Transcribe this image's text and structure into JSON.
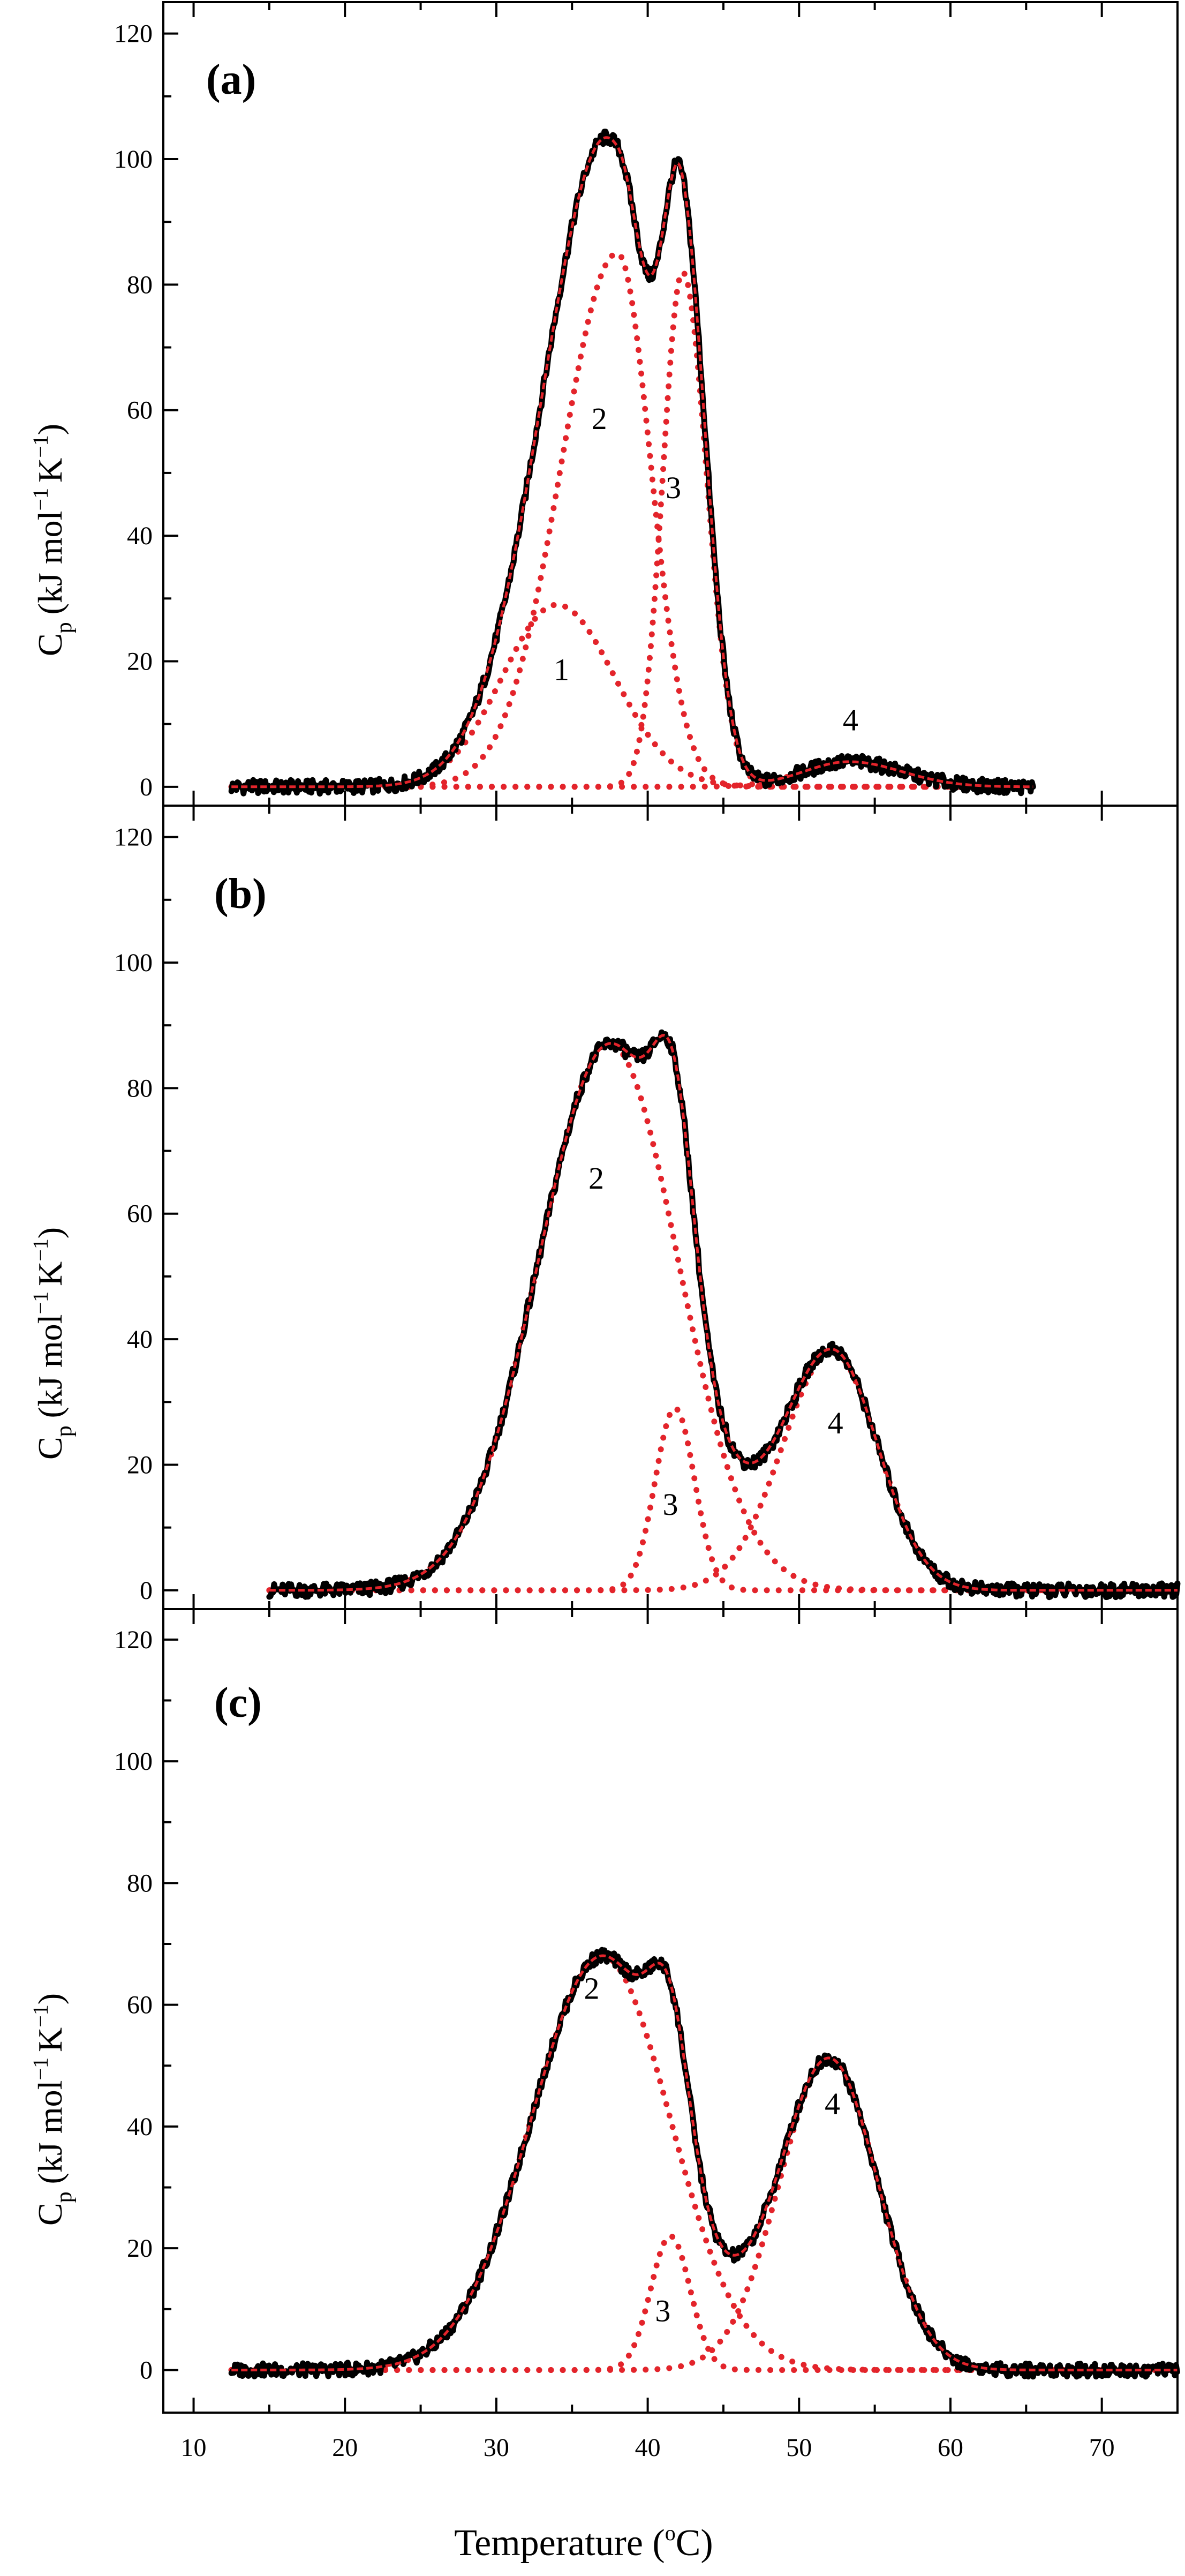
{
  "chart_data": {
    "type": "line",
    "xlabel": "Temperature",
    "xlabel_unit_open": " (",
    "xlabel_unit_sup": "o",
    "xlabel_unit_close": "C)",
    "xlim": [
      8,
      75
    ],
    "x_ticks": [
      "10",
      "20",
      "30",
      "40",
      "50",
      "60",
      "70"
    ],
    "panels": [
      {
        "label": "(a)",
        "ylabel_main": "C",
        "ylabel_sub": "p",
        "ylabel_units_1": "(kJ mol",
        "ylabel_sup_1": "−1",
        "ylabel_units_2": "K",
        "ylabel_sup_2": "−1",
        "ylabel_close": ")",
        "ylim": [
          -3,
          125
        ],
        "y_ticks": [
          "0",
          "20",
          "40",
          "60",
          "80",
          "100",
          "120"
        ],
        "x_range": [
          12.5,
          65.5
        ],
        "series": [
          {
            "name": "1",
            "kind": "component",
            "center": 34.0,
            "height": 29,
            "sigma_left": 3.6,
            "sigma_right": 3.8
          },
          {
            "name": "2",
            "kind": "component",
            "center": 38.0,
            "height": 85,
            "sigma_left": 3.7,
            "sigma_right": 2.2
          },
          {
            "name": "3",
            "kind": "component",
            "center": 42.3,
            "height": 82,
            "sigma_left": 1.3,
            "sigma_right": 1.6
          },
          {
            "name": "4",
            "kind": "component",
            "center": 53.3,
            "height": 4,
            "sigma_left": 3.0,
            "sigma_right": 3.5
          },
          {
            "name": "total",
            "kind": "experimental"
          },
          {
            "name": "fit",
            "kind": "fit"
          }
        ],
        "peak_labels": [
          {
            "text": "1",
            "x": 34.3,
            "y": 17
          },
          {
            "text": "2",
            "x": 36.8,
            "y": 57
          },
          {
            "text": "3",
            "x": 41.7,
            "y": 46
          },
          {
            "text": "4",
            "x": 53.4,
            "y": 9
          }
        ]
      },
      {
        "label": "(b)",
        "ylabel_main": "C",
        "ylabel_sub": "p",
        "ylabel_units_1": "(kJ mol",
        "ylabel_sup_1": "−1",
        "ylabel_units_2": "K",
        "ylabel_sup_2": "−1",
        "ylabel_close": ")",
        "ylim": [
          -3,
          125
        ],
        "y_ticks": [
          "0",
          "20",
          "40",
          "60",
          "80",
          "100",
          "120"
        ],
        "x_range": [
          15,
          75
        ],
        "series": [
          {
            "name": "2",
            "kind": "component",
            "center": 37.5,
            "height": 87,
            "sigma_left": 4.7,
            "sigma_right": 4.5
          },
          {
            "name": "3",
            "kind": "component",
            "center": 41.8,
            "height": 29,
            "sigma_left": 1.3,
            "sigma_right": 1.3
          },
          {
            "name": "4",
            "kind": "component",
            "center": 52.2,
            "height": 38,
            "sigma_left": 3.3,
            "sigma_right": 3.0
          },
          {
            "name": "total",
            "kind": "experimental"
          },
          {
            "name": "fit",
            "kind": "fit"
          }
        ],
        "peak_labels": [
          {
            "text": "2",
            "x": 36.6,
            "y": 64
          },
          {
            "text": "3",
            "x": 41.5,
            "y": 12
          },
          {
            "text": "4",
            "x": 52.4,
            "y": 25
          }
        ]
      },
      {
        "label": "(c)",
        "ylabel_main": "C",
        "ylabel_sub": "p",
        "ylabel_units_1": "(kJ mol",
        "ylabel_sup_1": "−1",
        "ylabel_units_2": "K",
        "ylabel_sup_2": "−1",
        "ylabel_close": ")",
        "ylim": [
          -7,
          125
        ],
        "y_ticks": [
          "0",
          "20",
          "40",
          "60",
          "80",
          "100",
          "120"
        ],
        "x_range": [
          12.5,
          75
        ],
        "series": [
          {
            "name": "2",
            "kind": "component",
            "center": 37.0,
            "height": 68,
            "sigma_left": 4.7,
            "sigma_right": 4.5
          },
          {
            "name": "3",
            "kind": "component",
            "center": 41.5,
            "height": 22,
            "sigma_left": 1.3,
            "sigma_right": 1.3
          },
          {
            "name": "4",
            "kind": "component",
            "center": 52.0,
            "height": 51,
            "sigma_left": 3.3,
            "sigma_right": 3.2
          },
          {
            "name": "total",
            "kind": "experimental"
          },
          {
            "name": "fit",
            "kind": "fit"
          }
        ],
        "peak_labels": [
          {
            "text": "2",
            "x": 36.3,
            "y": 61
          },
          {
            "text": "3",
            "x": 41.0,
            "y": 8
          },
          {
            "text": "4",
            "x": 52.2,
            "y": 42
          }
        ]
      }
    ]
  },
  "colors": {
    "experimental": "#000000",
    "fit": "#e3242b",
    "component": "#e3242b"
  }
}
